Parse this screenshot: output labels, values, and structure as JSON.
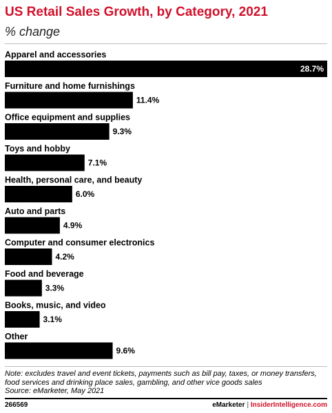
{
  "chart_data": {
    "type": "bar",
    "orientation": "horizontal",
    "title": "US Retail Sales Growth, by Category, 2021",
    "subtitle": "% change",
    "categories": [
      "Apparel and accessories",
      "Furniture and home furnishings",
      "Office equipment and supplies",
      "Toys and hobby",
      "Health, personal care, and beauty",
      "Auto and parts",
      "Computer and consumer electronics",
      "Food and beverage",
      "Books, music, and video",
      "Other"
    ],
    "values": [
      28.7,
      11.4,
      9.3,
      7.1,
      6.0,
      4.9,
      4.2,
      3.3,
      3.1,
      9.6
    ],
    "value_labels": [
      "28.7%",
      "11.4%",
      "9.3%",
      "7.1%",
      "6.0%",
      "4.9%",
      "4.2%",
      "3.3%",
      "3.1%",
      "9.6%"
    ],
    "color": "#000000",
    "note": "Note: excludes travel and event tickets, payments such as bill pay, taxes, or money transfers, food services and drinking place sales, gambling, and other vice goods sales",
    "source": "Source: eMarketer, May 2021",
    "chart_id": "266569",
    "footer_brand": "eMarketer",
    "footer_separator": "|",
    "footer_site": "InsiderIntelligence.com"
  }
}
